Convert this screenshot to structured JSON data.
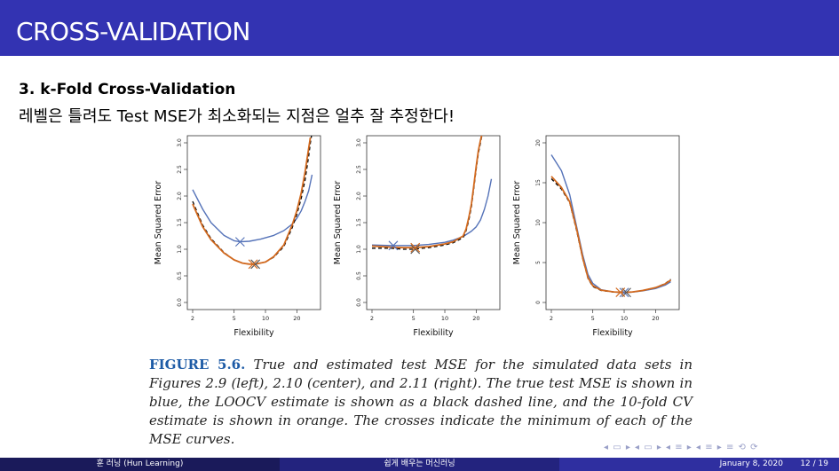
{
  "slide": {
    "title": "CROSS-VALIDATION",
    "heading": "3. k-Fold Cross-Validation",
    "subtitle": "레벨은 틀려도 Test MSE가 최소화되는 지점은 얼추 잘 추정한다!"
  },
  "caption": {
    "label": "FIGURE 5.6.",
    "text": "True and estimated test MSE for the simulated data sets in Figures 2.9 (left), 2.10 (center), and 2.11 (right). The true test MSE is shown in blue, the LOOCV estimate is shown as a black dashed line, and the 10-fold CV estimate is shown in orange. The crosses indicate the minimum of each of the MSE curves."
  },
  "footer": {
    "left": "훈 러닝 (Hun Learning)",
    "center": "쉽게 배우는 머신러닝",
    "date": "January 8, 2020",
    "page": "12 / 19"
  },
  "nav_symbols": "◂ ▭ ▸ ◂ ▭ ▸ ◂ ≡ ▸ ◂ ≡ ▸   ≡   ⟲ ⟳",
  "colors": {
    "true_mse": "#5472b8",
    "loocv": "#000000",
    "cv10": "#d2691e",
    "title_bar": "#3333b2"
  },
  "chart_data": [
    {
      "type": "line",
      "xlabel": "Flexibility",
      "ylabel": "Mean Squared Error",
      "xscale": "log",
      "xlim": [
        2,
        30
      ],
      "xticks": [
        2,
        5,
        10,
        20
      ],
      "ylim": [
        0,
        3.0
      ],
      "yticks": [
        0.0,
        0.5,
        1.0,
        1.5,
        2.0,
        2.5,
        3.0
      ],
      "series": [
        {
          "key": "true",
          "color": "#5472b8",
          "dash": false,
          "x": [
            2,
            2.5,
            3,
            4,
            5,
            5.7,
            7,
            9,
            12,
            15,
            18,
            20,
            22,
            24,
            26,
            28
          ],
          "y": [
            2.12,
            1.75,
            1.5,
            1.26,
            1.16,
            1.14,
            1.15,
            1.19,
            1.26,
            1.35,
            1.47,
            1.58,
            1.72,
            1.9,
            2.1,
            2.4
          ],
          "min": [
            5.7,
            1.14
          ]
        },
        {
          "key": "loocv",
          "color": "#000000",
          "dash": true,
          "x": [
            2,
            2.5,
            3,
            4,
            5,
            6,
            7,
            8,
            10,
            12,
            15,
            18,
            20,
            22,
            24,
            26,
            27,
            28
          ],
          "y": [
            1.9,
            1.45,
            1.2,
            0.94,
            0.8,
            0.74,
            0.72,
            0.72,
            0.76,
            0.85,
            1.05,
            1.4,
            1.65,
            1.95,
            2.3,
            2.75,
            3.0,
            3.2
          ],
          "min": [
            8,
            0.72
          ]
        },
        {
          "key": "cv10",
          "color": "#d2691e",
          "dash": false,
          "x": [
            2,
            2.5,
            3,
            4,
            5,
            6,
            7,
            8,
            10,
            12,
            15,
            18,
            20,
            22,
            24,
            26,
            27
          ],
          "y": [
            1.85,
            1.42,
            1.18,
            0.93,
            0.8,
            0.74,
            0.72,
            0.72,
            0.76,
            0.86,
            1.08,
            1.45,
            1.72,
            2.05,
            2.45,
            2.9,
            3.1
          ],
          "min": [
            7.6,
            0.72
          ]
        }
      ]
    },
    {
      "type": "line",
      "xlabel": "Flexibility",
      "ylabel": "Mean Squared Error",
      "xscale": "log",
      "xlim": [
        2,
        30
      ],
      "xticks": [
        2,
        5,
        10,
        20
      ],
      "ylim": [
        0,
        3.0
      ],
      "yticks": [
        0.0,
        0.5,
        1.0,
        1.5,
        2.0,
        2.5,
        3.0
      ],
      "series": [
        {
          "key": "true",
          "color": "#5472b8",
          "dash": false,
          "x": [
            2,
            3,
            4,
            5,
            7,
            10,
            12,
            15,
            18,
            20,
            22,
            24,
            26,
            28
          ],
          "y": [
            1.08,
            1.07,
            1.07,
            1.07,
            1.09,
            1.13,
            1.17,
            1.24,
            1.34,
            1.42,
            1.55,
            1.75,
            2.0,
            2.32
          ],
          "min": [
            3.2,
            1.07
          ]
        },
        {
          "key": "loocv",
          "color": "#000000",
          "dash": true,
          "x": [
            2,
            3,
            4,
            5,
            7,
            10,
            12,
            15,
            16,
            17,
            18,
            19,
            20,
            21,
            22,
            23
          ],
          "y": [
            1.02,
            1.02,
            1.0,
            1.0,
            1.03,
            1.08,
            1.12,
            1.22,
            1.35,
            1.55,
            1.8,
            2.15,
            2.5,
            2.8,
            3.0,
            3.2
          ],
          "min": [
            5.2,
            1.0
          ]
        },
        {
          "key": "cv10",
          "color": "#d2691e",
          "dash": false,
          "x": [
            2,
            3,
            4,
            5,
            7,
            10,
            12,
            15,
            16,
            17,
            18,
            19,
            20,
            21,
            22,
            23
          ],
          "y": [
            1.06,
            1.04,
            1.03,
            1.03,
            1.05,
            1.1,
            1.14,
            1.25,
            1.38,
            1.6,
            1.85,
            2.2,
            2.55,
            2.85,
            3.05,
            3.2
          ],
          "min": [
            5.2,
            1.03
          ]
        }
      ]
    },
    {
      "type": "line",
      "xlabel": "Flexibility",
      "ylabel": "Mean Squared Error",
      "xscale": "log",
      "xlim": [
        2,
        30
      ],
      "xticks": [
        2,
        5,
        10,
        20
      ],
      "ylim": [
        0,
        20
      ],
      "yticks": [
        0,
        5,
        10,
        15,
        20
      ],
      "series": [
        {
          "key": "true",
          "color": "#5472b8",
          "dash": false,
          "x": [
            2,
            2.5,
            3,
            3.5,
            4,
            4.5,
            5,
            6,
            8,
            10,
            12,
            15,
            20,
            25,
            28
          ],
          "y": [
            18.5,
            16.5,
            13.5,
            9.5,
            6.0,
            3.5,
            2.4,
            1.6,
            1.3,
            1.25,
            1.3,
            1.45,
            1.75,
            2.2,
            2.6
          ],
          "min": [
            10,
            1.25
          ]
        },
        {
          "key": "loocv",
          "color": "#000000",
          "dash": true,
          "x": [
            2,
            2.5,
            3,
            3.5,
            4,
            4.5,
            5,
            6,
            8,
            10,
            12,
            15,
            20,
            25,
            28
          ],
          "y": [
            15.5,
            14.2,
            12.5,
            9.0,
            5.5,
            3.0,
            2.0,
            1.5,
            1.3,
            1.25,
            1.3,
            1.5,
            1.85,
            2.4,
            2.9
          ],
          "min": [
            10.5,
            1.25
          ]
        },
        {
          "key": "cv10",
          "color": "#d2691e",
          "dash": false,
          "x": [
            2,
            2.5,
            3,
            3.5,
            4,
            4.5,
            5,
            6,
            8,
            10,
            12,
            15,
            20,
            25,
            28
          ],
          "y": [
            15.8,
            14.4,
            12.6,
            9.2,
            5.6,
            3.1,
            2.1,
            1.55,
            1.32,
            1.27,
            1.32,
            1.5,
            1.85,
            2.35,
            2.8
          ],
          "min": [
            9.2,
            1.27
          ]
        }
      ]
    }
  ]
}
